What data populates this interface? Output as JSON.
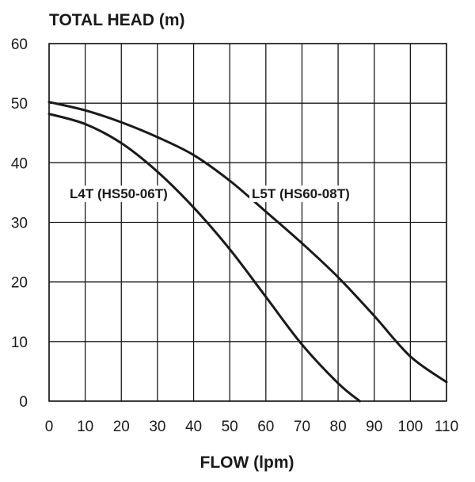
{
  "chart_data": {
    "type": "line",
    "title": "TOTAL HEAD (m)",
    "xlabel": "FLOW (lpm)",
    "ylabel": "TOTAL HEAD (m)",
    "xlim": [
      0,
      110
    ],
    "ylim": [
      0,
      60
    ],
    "x_ticks": [
      "0",
      "10",
      "20",
      "30",
      "40",
      "50",
      "60",
      "70",
      "80",
      "90",
      "100",
      "110"
    ],
    "y_ticks": [
      "0",
      "10",
      "20",
      "30",
      "40",
      "50",
      "60"
    ],
    "grid": true,
    "series": [
      {
        "name": "L4T (HS50-06T)",
        "points": [
          [
            0,
            48.2
          ],
          [
            10,
            46.5
          ],
          [
            20,
            43.3
          ],
          [
            30,
            38.5
          ],
          [
            40,
            32.5
          ],
          [
            50,
            25.5
          ],
          [
            60,
            17.5
          ],
          [
            70,
            9.5
          ],
          [
            80,
            3.0
          ],
          [
            86,
            0
          ]
        ]
      },
      {
        "name": "L5T (HS60-08T)",
        "points": [
          [
            0,
            50.2
          ],
          [
            10,
            48.8
          ],
          [
            20,
            46.8
          ],
          [
            30,
            44.3
          ],
          [
            40,
            41.3
          ],
          [
            50,
            37.0
          ],
          [
            60,
            31.8
          ],
          [
            70,
            26.5
          ],
          [
            80,
            20.8
          ],
          [
            90,
            14.3
          ],
          [
            100,
            7.5
          ],
          [
            110,
            3.2
          ]
        ]
      }
    ]
  }
}
